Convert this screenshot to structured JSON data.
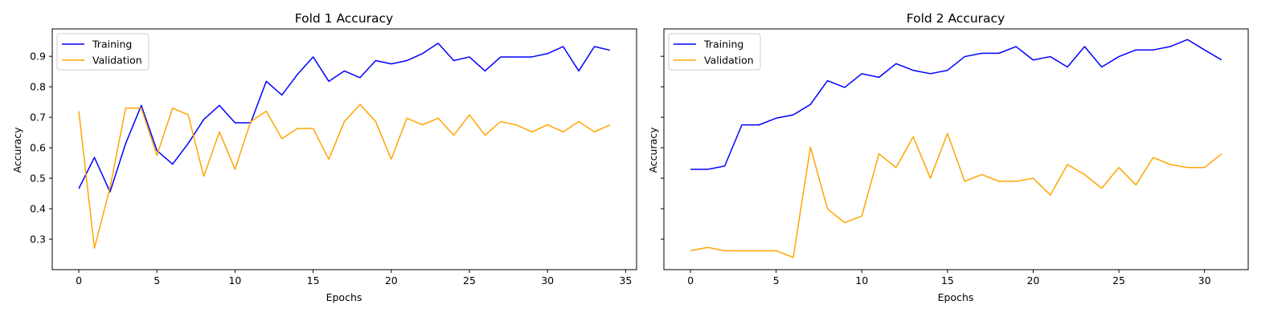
{
  "chart_data": [
    {
      "type": "line",
      "title": "Fold 1 Accuracy",
      "xlabel": "Epochs",
      "ylabel": "Accuracy",
      "xlim": [
        -1.7,
        35.7
      ],
      "ylim": [
        0.2,
        0.99
      ],
      "xticks": [
        0,
        5,
        10,
        15,
        20,
        25,
        30,
        35
      ],
      "yticks": [
        0.3,
        0.4,
        0.5,
        0.6,
        0.7,
        0.8,
        0.9
      ],
      "grid": false,
      "legend": "upper-left",
      "x": [
        0,
        1,
        2,
        3,
        4,
        5,
        6,
        7,
        8,
        9,
        10,
        11,
        12,
        13,
        14,
        15,
        16,
        17,
        18,
        19,
        20,
        21,
        22,
        23,
        24,
        25,
        26,
        27,
        28,
        29,
        30,
        31,
        32,
        33,
        34
      ],
      "series": [
        {
          "name": "Training",
          "color": "#0000ff",
          "values": [
            0.466,
            0.568,
            0.455,
            0.614,
            0.739,
            0.591,
            0.546,
            0.614,
            0.693,
            0.739,
            0.682,
            0.682,
            0.818,
            0.773,
            0.841,
            0.898,
            0.818,
            0.852,
            0.83,
            0.886,
            0.875,
            0.886,
            0.909,
            0.943,
            0.886,
            0.898,
            0.852,
            0.898,
            0.898,
            0.898,
            0.909,
            0.932,
            0.852,
            0.932,
            0.92
          ]
        },
        {
          "name": "Validation",
          "color": "#ffa500",
          "values": [
            0.72,
            0.27,
            0.47,
            0.73,
            0.73,
            0.575,
            0.73,
            0.708,
            0.506,
            0.652,
            0.529,
            0.686,
            0.72,
            0.63,
            0.663,
            0.663,
            0.562,
            0.686,
            0.742,
            0.686,
            0.562,
            0.697,
            0.675,
            0.697,
            0.641,
            0.708,
            0.641,
            0.686,
            0.675,
            0.652,
            0.675,
            0.652,
            0.686,
            0.652,
            0.675
          ]
        }
      ]
    },
    {
      "type": "line",
      "title": "Fold 2 Accuracy",
      "xlabel": "Epochs",
      "ylabel": "Accuracy",
      "xlim": [
        -1.55,
        32.55
      ],
      "ylim": [
        0.2,
        0.99
      ],
      "xticks": [
        0,
        5,
        10,
        15,
        20,
        25,
        30
      ],
      "yticks": [],
      "grid": false,
      "legend": "upper-left",
      "x": [
        0,
        1,
        2,
        3,
        4,
        5,
        6,
        7,
        8,
        9,
        10,
        11,
        12,
        13,
        14,
        15,
        16,
        17,
        18,
        19,
        20,
        21,
        22,
        23,
        24,
        25,
        26,
        27,
        28,
        29,
        30,
        31
      ],
      "series": [
        {
          "name": "Training",
          "color": "#0000ff",
          "values": [
            0.529,
            0.529,
            0.54,
            0.675,
            0.675,
            0.697,
            0.708,
            0.742,
            0.82,
            0.798,
            0.843,
            0.831,
            0.876,
            0.854,
            0.843,
            0.854,
            0.899,
            0.91,
            0.91,
            0.932,
            0.888,
            0.899,
            0.865,
            0.932,
            0.865,
            0.899,
            0.921,
            0.921,
            0.932,
            0.955,
            0.921,
            0.888
          ]
        },
        {
          "name": "Validation",
          "color": "#ffa500",
          "values": [
            0.262,
            0.273,
            0.262,
            0.262,
            0.262,
            0.262,
            0.24,
            0.602,
            0.399,
            0.354,
            0.376,
            0.58,
            0.535,
            0.636,
            0.5,
            0.647,
            0.49,
            0.512,
            0.49,
            0.49,
            0.5,
            0.445,
            0.545,
            0.512,
            0.467,
            0.535,
            0.478,
            0.568,
            0.545,
            0.535,
            0.535,
            0.58
          ]
        }
      ]
    }
  ]
}
